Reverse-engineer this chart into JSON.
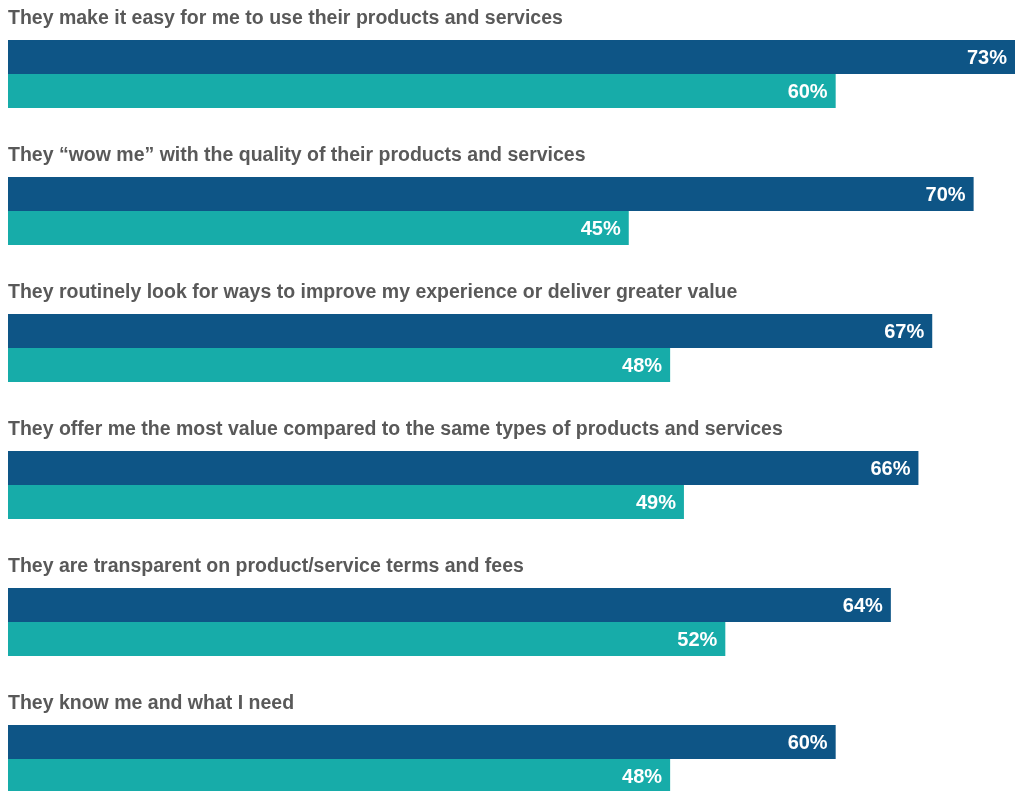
{
  "chart_data": {
    "type": "bar",
    "orientation": "horizontal",
    "categories": [
      "They make it easy for me to use their products and services",
      "They “wow me” with the quality of their products and services",
      "They routinely look for ways to improve my experience or deliver greater value",
      "They offer me the most value compared to the same types of products and services",
      "They are transparent on product/service terms and fees",
      "They know me and what I need"
    ],
    "series": [
      {
        "color": "#0e5586",
        "values": [
          73,
          70,
          67,
          66,
          64,
          60
        ],
        "value_labels": [
          "73%",
          "70%",
          "67%",
          "66%",
          "64%",
          "60%"
        ]
      },
      {
        "color": "#17aca9",
        "values": [
          60,
          45,
          48,
          49,
          52,
          48
        ],
        "value_labels": [
          "60%",
          "45%",
          "48%",
          "49%",
          "52%",
          "48%"
        ]
      }
    ]
  }
}
